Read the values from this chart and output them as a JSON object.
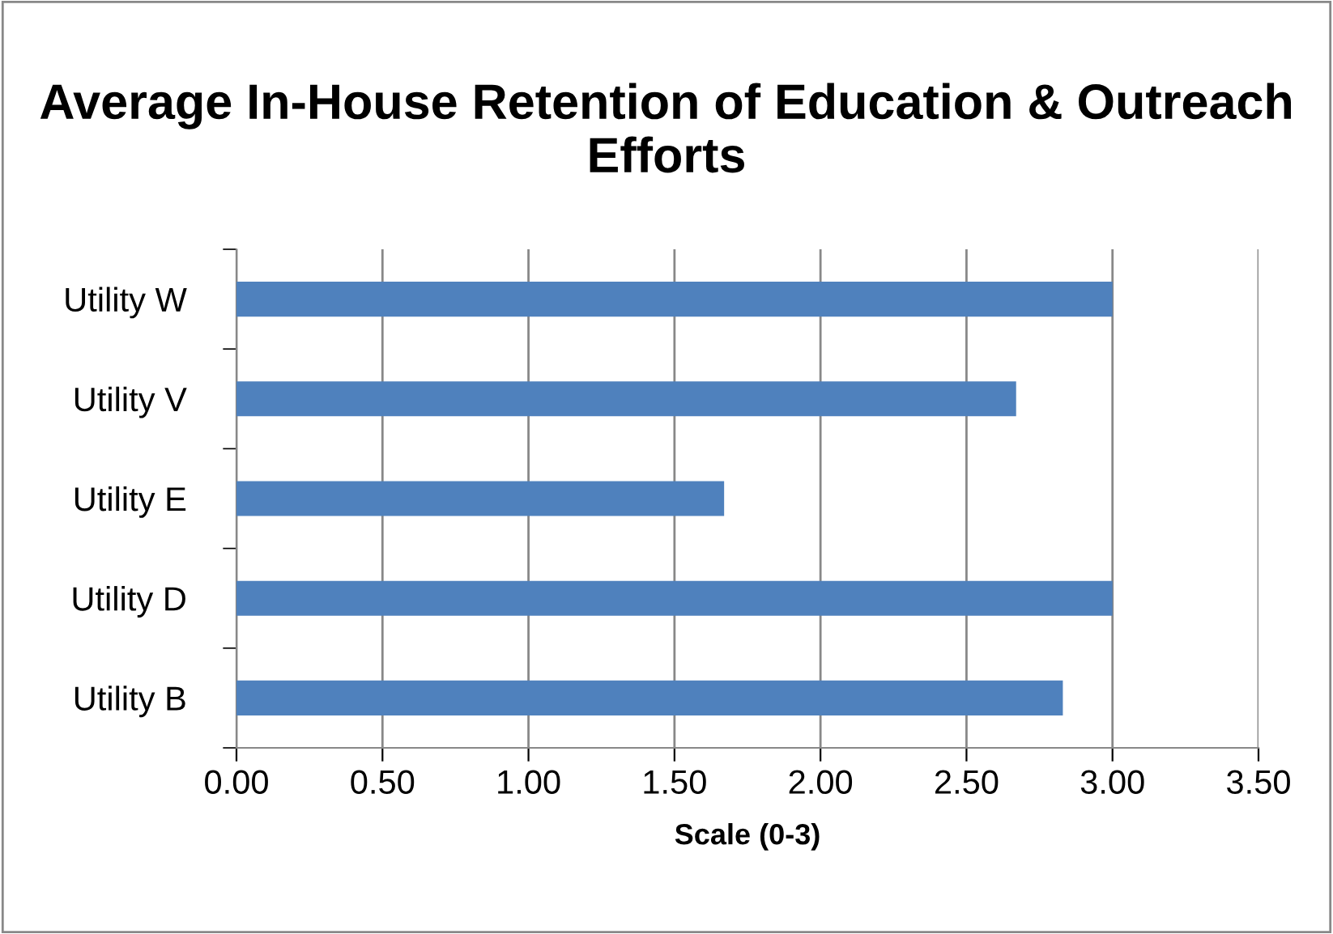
{
  "chart_data": {
    "type": "bar",
    "orientation": "horizontal",
    "title": "Average In-House Retention of Education & Outreach Efforts",
    "xlabel": "Scale (0-3)",
    "categories": [
      "Utility W",
      "Utility V",
      "Utility E",
      "Utility D",
      "Utility B"
    ],
    "values": [
      3.0,
      2.67,
      1.67,
      3.0,
      2.83
    ],
    "color": "#4f81bd",
    "xlim": [
      0,
      3.5
    ],
    "xticks": [
      {
        "value": 0,
        "label": "0.00"
      },
      {
        "value": 0.5,
        "label": "0.50"
      },
      {
        "value": 1,
        "label": "1.00"
      },
      {
        "value": 1.5,
        "label": "1.50"
      },
      {
        "value": 2,
        "label": "2.00"
      },
      {
        "value": 2.5,
        "label": "2.50"
      },
      {
        "value": 3,
        "label": "3.00"
      },
      {
        "value": 3.5,
        "label": "3.50"
      }
    ],
    "grid": "x",
    "legend": false
  }
}
